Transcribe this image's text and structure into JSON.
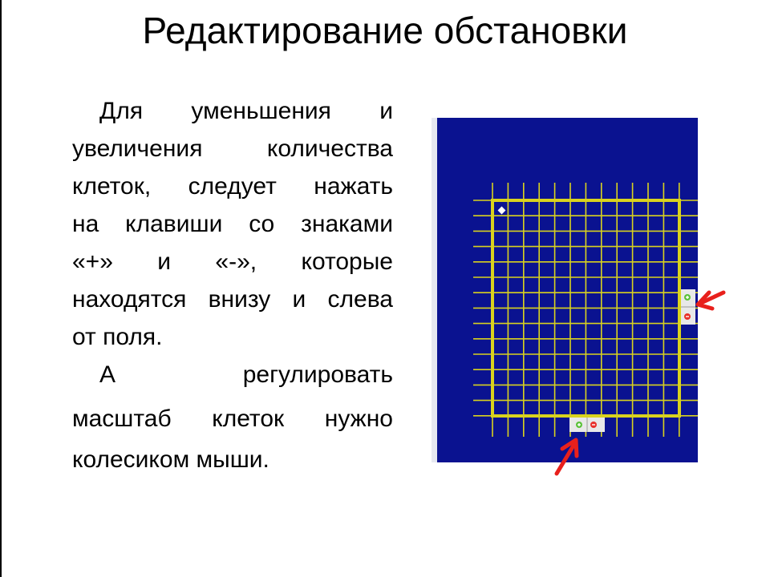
{
  "slide": {
    "title": "Редактирование обстановки",
    "paragraph1_lines": [
      "Для уменьшения и",
      "увеличения количества",
      "клеток, следует нажать",
      "на клавиши со знаками",
      "«+» и «-», которые",
      "находятся внизу и слева",
      "от поля."
    ],
    "paragraph2_lines": [
      "А регулировать",
      "масштаб клеток нужно",
      "колесиком мыши."
    ]
  },
  "field": {
    "colors": {
      "background": "#0A1290",
      "grid": "#D9D21E",
      "border": "#D9D21E",
      "arrow": "#E8201C",
      "plus": "#5CC23A",
      "minus": "#E8302A",
      "button_bg": "#E8E8E8"
    },
    "icons": {
      "robot": "diamond-icon",
      "add": "plus-circle-icon",
      "remove": "minus-circle-icon",
      "pointer": "red-arrow-icon"
    }
  }
}
